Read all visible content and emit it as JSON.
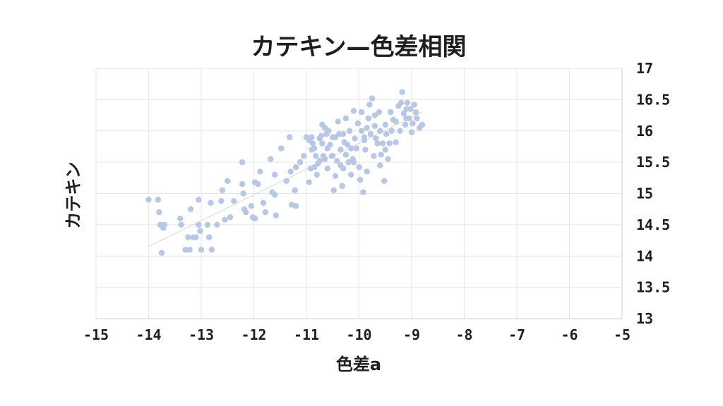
{
  "chart_data": {
    "type": "scatter",
    "title": "カテキン—色差相関",
    "xlabel": "色差a",
    "ylabel": "カテキン",
    "xlim": [
      -15,
      -5
    ],
    "ylim": [
      13,
      17
    ],
    "x_ticks": [
      -15,
      -14,
      -13,
      -12,
      -11,
      -10,
      -9,
      -8,
      -7,
      -6,
      -5
    ],
    "y_ticks": [
      13,
      13.5,
      14,
      14.5,
      15,
      15.5,
      16,
      16.5,
      17
    ],
    "y_axis_position": "right",
    "grid": true,
    "legend": "none",
    "point_color": "#b8c7e3",
    "trend_line": {
      "color": "#d9d9d9",
      "from": [
        -14.0,
        14.15
      ],
      "to": [
        -8.8,
        16.3
      ]
    },
    "points": [
      [
        -14.0,
        14.9
      ],
      [
        -13.82,
        14.9
      ],
      [
        -13.8,
        14.7
      ],
      [
        -13.78,
        14.5
      ],
      [
        -13.72,
        14.45
      ],
      [
        -13.7,
        14.5
      ],
      [
        -13.75,
        14.05
      ],
      [
        -13.4,
        14.6
      ],
      [
        -13.38,
        14.5
      ],
      [
        -13.3,
        14.1
      ],
      [
        -13.25,
        14.3
      ],
      [
        -13.22,
        14.1
      ],
      [
        -13.2,
        14.75
      ],
      [
        -13.15,
        14.3
      ],
      [
        -13.1,
        14.3
      ],
      [
        -13.05,
        14.9
      ],
      [
        -13.02,
        14.4
      ],
      [
        -13.05,
        14.5
      ],
      [
        -13.0,
        14.1
      ],
      [
        -12.88,
        14.5
      ],
      [
        -12.85,
        14.3
      ],
      [
        -12.8,
        14.1
      ],
      [
        -12.82,
        14.85
      ],
      [
        -12.7,
        14.5
      ],
      [
        -12.6,
        15.05
      ],
      [
        -12.62,
        14.88
      ],
      [
        -12.55,
        14.58
      ],
      [
        -12.45,
        14.62
      ],
      [
        -12.5,
        15.2
      ],
      [
        -12.38,
        14.88
      ],
      [
        -12.22,
        15.5
      ],
      [
        -12.22,
        15.15
      ],
      [
        -12.2,
        15.0
      ],
      [
        -12.18,
        14.75
      ],
      [
        -12.15,
        14.7
      ],
      [
        -12.05,
        14.8
      ],
      [
        -12.02,
        14.62
      ],
      [
        -11.98,
        14.6
      ],
      [
        -11.98,
        15.18
      ],
      [
        -11.92,
        15.15
      ],
      [
        -11.88,
        15.35
      ],
      [
        -11.82,
        14.85
      ],
      [
        -11.78,
        14.7
      ],
      [
        -11.68,
        15.55
      ],
      [
        -11.65,
        15.02
      ],
      [
        -11.6,
        14.98
      ],
      [
        -11.6,
        15.3
      ],
      [
        -11.58,
        14.65
      ],
      [
        -11.48,
        15.72
      ],
      [
        -11.38,
        15.2
      ],
      [
        -11.32,
        15.9
      ],
      [
        -11.28,
        14.82
      ],
      [
        -11.22,
        15.05
      ],
      [
        -11.2,
        15.42
      ],
      [
        -11.2,
        14.8
      ],
      [
        -11.12,
        15.5
      ],
      [
        -11.0,
        15.9
      ],
      [
        -10.95,
        15.18
      ],
      [
        -10.92,
        15.4
      ],
      [
        -10.9,
        15.9
      ],
      [
        -10.88,
        15.8
      ],
      [
        -10.85,
        15.72
      ],
      [
        -10.82,
        15.6
      ],
      [
        -10.8,
        15.3
      ],
      [
        -10.78,
        15.48
      ],
      [
        -10.75,
        15.88
      ],
      [
        -10.72,
        15.92
      ],
      [
        -10.7,
        16.1
      ],
      [
        -10.68,
        15.6
      ],
      [
        -10.65,
        15.55
      ],
      [
        -10.62,
        15.95
      ],
      [
        -10.6,
        15.4
      ],
      [
        -10.58,
        16.0
      ],
      [
        -10.55,
        15.78
      ],
      [
        -10.52,
        15.6
      ],
      [
        -10.5,
        15.9
      ],
      [
        -10.48,
        15.05
      ],
      [
        -10.45,
        15.28
      ],
      [
        -10.42,
        15.52
      ],
      [
        -10.4,
        16.15
      ],
      [
        -10.38,
        15.95
      ],
      [
        -10.35,
        15.7
      ],
      [
        -10.32,
        15.12
      ],
      [
        -10.3,
        15.4
      ],
      [
        -10.28,
        15.82
      ],
      [
        -10.25,
        15.62
      ],
      [
        -10.22,
        15.78
      ],
      [
        -10.2,
        15.5
      ],
      [
        -10.18,
        16.0
      ],
      [
        -10.15,
        15.3
      ],
      [
        -10.12,
        15.55
      ],
      [
        -10.1,
        16.32
      ],
      [
        -10.08,
        15.88
      ],
      [
        -10.05,
        15.72
      ],
      [
        -10.02,
        16.12
      ],
      [
        -10.0,
        15.42
      ],
      [
        -9.98,
        15.22
      ],
      [
        -9.95,
        16.0
      ],
      [
        -9.92,
        15.02
      ],
      [
        -9.9,
        15.9
      ],
      [
        -9.88,
        15.7
      ],
      [
        -9.85,
        15.35
      ],
      [
        -9.82,
        16.2
      ],
      [
        -9.8,
        16.42
      ],
      [
        -9.78,
        15.95
      ],
      [
        -9.75,
        16.52
      ],
      [
        -9.72,
        15.6
      ],
      [
        -9.7,
        16.08
      ],
      [
        -9.68,
        15.88
      ],
      [
        -9.65,
        15.8
      ],
      [
        -9.62,
        16.3
      ],
      [
        -9.6,
        16.0
      ],
      [
        -9.58,
        15.62
      ],
      [
        -9.55,
        15.8
      ],
      [
        -9.52,
        15.2
      ],
      [
        -9.5,
        16.1
      ],
      [
        -9.48,
        15.95
      ],
      [
        -9.45,
        15.55
      ],
      [
        -9.42,
        15.8
      ],
      [
        -9.4,
        16.3
      ],
      [
        -9.38,
        16.0
      ],
      [
        -9.35,
        16.18
      ],
      [
        -9.3,
        15.82
      ],
      [
        -9.25,
        16.4
      ],
      [
        -9.22,
        16.0
      ],
      [
        -9.2,
        16.45
      ],
      [
        -9.18,
        16.62
      ],
      [
        -9.15,
        16.28
      ],
      [
        -9.12,
        16.1
      ],
      [
        -9.1,
        16.2
      ],
      [
        -9.08,
        16.45
      ],
      [
        -9.05,
        16.2
      ],
      [
        -9.02,
        16.35
      ],
      [
        -9.0,
        15.98
      ],
      [
        -8.98,
        16.12
      ],
      [
        -8.95,
        16.42
      ],
      [
        -8.92,
        16.3
      ],
      [
        -8.9,
        16.2
      ],
      [
        -8.85,
        16.05
      ],
      [
        -8.8,
        16.1
      ],
      [
        -10.9,
        15.7
      ],
      [
        -10.7,
        15.8
      ],
      [
        -10.5,
        15.6
      ],
      [
        -10.3,
        15.95
      ],
      [
        -10.1,
        15.5
      ],
      [
        -9.9,
        15.85
      ],
      [
        -9.7,
        16.25
      ],
      [
        -9.5,
        15.7
      ],
      [
        -11.05,
        15.6
      ],
      [
        -10.95,
        15.85
      ],
      [
        -10.6,
        15.72
      ],
      [
        -10.25,
        16.2
      ],
      [
        -9.95,
        16.3
      ],
      [
        -9.6,
        15.45
      ],
      [
        -11.3,
        15.35
      ],
      [
        -10.65,
        16.05
      ],
      [
        -10.85,
        15.42
      ],
      [
        -10.45,
        15.9
      ],
      [
        -10.15,
        15.72
      ],
      [
        -9.85,
        16.05
      ],
      [
        -9.3,
        16.15
      ],
      [
        -9.1,
        16.35
      ],
      [
        -10.75,
        15.52
      ],
      [
        -10.35,
        15.45
      ]
    ]
  }
}
